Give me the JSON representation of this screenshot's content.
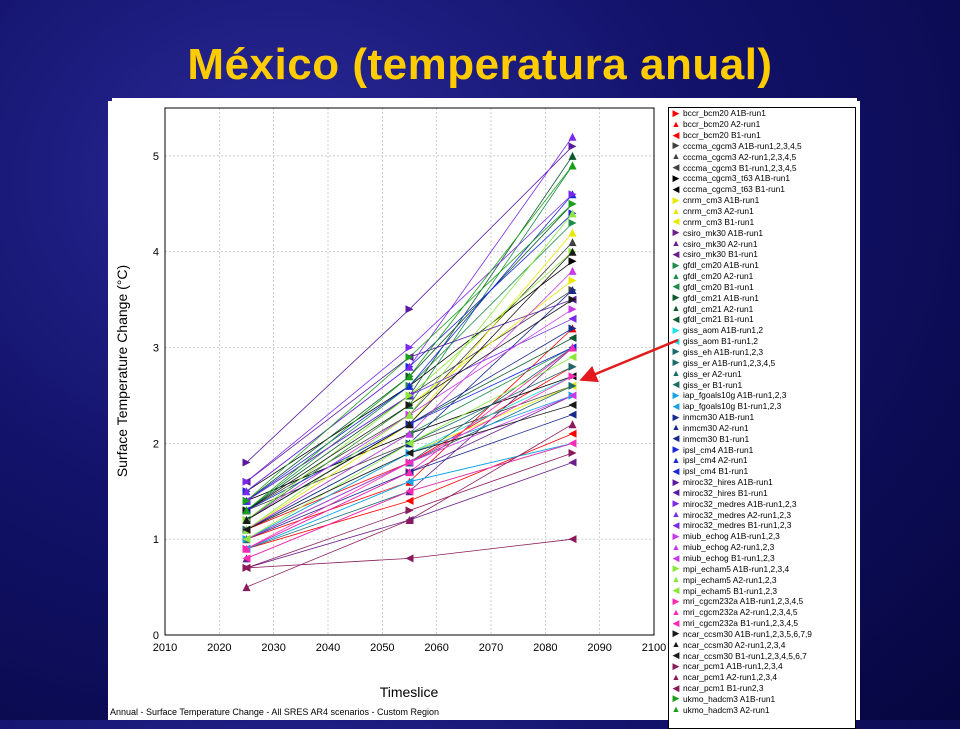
{
  "slide": {
    "title": "México (temperatura anual)"
  },
  "caption": "Annual - Surface Temperature Change - All SRES AR4 scenarios - Custom Region",
  "colors": {
    "arrow": "#e31a1c",
    "title": "#ffcc00"
  },
  "chart_data": {
    "type": "line",
    "xlabel": "Timeslice",
    "ylabel": "Surface Temperature Change (°C)",
    "xlim": [
      2010,
      2100
    ],
    "ylim": [
      0,
      5.5
    ],
    "xticks": [
      "2010",
      "2020",
      "2030",
      "2040",
      "2050",
      "2060",
      "2070",
      "2080",
      "2090",
      "2100"
    ],
    "yticks": [
      "0",
      "1",
      "2",
      "3",
      "4",
      "5"
    ],
    "grid": true,
    "legend_position": "right",
    "annotation": "arrow from legend entry giss_aom A1B-run1,2 to its marker at 2085",
    "x": [
      2025,
      2055,
      2085
    ],
    "series": [
      {
        "name": "bccr_bcm20 A1B-run1",
        "color": "#ff0000",
        "marker": "right",
        "values": [
          1.1,
          1.8,
          2.8
        ]
      },
      {
        "name": "bccr_bcm20 A2-run1",
        "color": "#ff0000",
        "marker": "up",
        "values": [
          1.0,
          1.6,
          3.2
        ]
      },
      {
        "name": "bccr_bcm20 B1-run1",
        "color": "#ff0000",
        "marker": "left",
        "values": [
          0.9,
          1.4,
          2.1
        ]
      },
      {
        "name": "cccma_cgcm3 A1B-run1,2,3,4,5",
        "color": "#404040",
        "marker": "right",
        "values": [
          1.4,
          2.5,
          3.6
        ]
      },
      {
        "name": "cccma_cgcm3 A2-run1,2,3,4,5",
        "color": "#404040",
        "marker": "up",
        "values": [
          1.3,
          2.3,
          4.1
        ]
      },
      {
        "name": "cccma_cgcm3 B1-run1,2,3,4,5",
        "color": "#404040",
        "marker": "left",
        "values": [
          1.3,
          2.0,
          2.6
        ]
      },
      {
        "name": "cccma_cgcm3_t63 A1B-run1",
        "color": "#000000",
        "marker": "right",
        "values": [
          1.5,
          2.6,
          3.9
        ]
      },
      {
        "name": "cccma_cgcm3_t63 B1-run1",
        "color": "#000000",
        "marker": "left",
        "values": [
          1.4,
          2.1,
          2.7
        ]
      },
      {
        "name": "cnrm_cm3 A1B-run1",
        "color": "#e8e800",
        "marker": "right",
        "values": [
          1.2,
          2.4,
          3.7
        ]
      },
      {
        "name": "cnrm_cm3 A2-run1",
        "color": "#e8e800",
        "marker": "up",
        "values": [
          1.1,
          2.2,
          4.2
        ]
      },
      {
        "name": "cnrm_cm3 B1-run1",
        "color": "#e8e800",
        "marker": "left",
        "values": [
          1.0,
          1.9,
          2.6
        ]
      },
      {
        "name": "csiro_mk30 A1B-run1",
        "color": "#6a1f8a",
        "marker": "right",
        "values": [
          0.9,
          1.7,
          2.5
        ]
      },
      {
        "name": "csiro_mk30 A2-run1",
        "color": "#6a1f8a",
        "marker": "up",
        "values": [
          0.8,
          1.5,
          3.0
        ]
      },
      {
        "name": "csiro_mk30 B1-run1",
        "color": "#6a1f8a",
        "marker": "left",
        "values": [
          0.7,
          1.2,
          1.8
        ]
      },
      {
        "name": "gfdl_cm20 A1B-run1",
        "color": "#1e8c4a",
        "marker": "right",
        "values": [
          1.3,
          2.6,
          4.3
        ]
      },
      {
        "name": "gfdl_cm20 A2-run1",
        "color": "#1e8c4a",
        "marker": "up",
        "values": [
          1.2,
          2.4,
          4.9
        ]
      },
      {
        "name": "gfdl_cm20 B1-run1",
        "color": "#1e8c4a",
        "marker": "left",
        "values": [
          1.1,
          2.1,
          3.0
        ]
      },
      {
        "name": "gfdl_cm21 A1B-run1",
        "color": "#0f5a2e",
        "marker": "right",
        "values": [
          1.4,
          2.7,
          4.5
        ]
      },
      {
        "name": "gfdl_cm21 A2-run1",
        "color": "#0f5a2e",
        "marker": "up",
        "values": [
          1.3,
          2.5,
          5.0
        ]
      },
      {
        "name": "gfdl_cm21 B1-run1",
        "color": "#0f5a2e",
        "marker": "left",
        "values": [
          1.2,
          2.2,
          3.1
        ]
      },
      {
        "name": "giss_aom A1B-run1,2",
        "color": "#20e0e0",
        "marker": "right",
        "values": [
          1.0,
          1.9,
          2.7
        ]
      },
      {
        "name": "giss_aom B1-run1,2",
        "color": "#20e0e0",
        "marker": "left",
        "values": [
          0.9,
          1.6,
          2.0
        ]
      },
      {
        "name": "giss_eh A1B-run1,2,3",
        "color": "#1a6a6a",
        "marker": "right",
        "values": [
          1.0,
          1.8,
          2.6
        ]
      },
      {
        "name": "giss_er A1B-run1,2,3,4,5",
        "color": "#1a6a6a",
        "marker": "right",
        "values": [
          1.1,
          2.0,
          2.8
        ]
      },
      {
        "name": "giss_er A2-run1",
        "color": "#1a6a6a",
        "marker": "up",
        "values": [
          1.0,
          1.8,
          3.0
        ]
      },
      {
        "name": "giss_er B1-run1",
        "color": "#1a6a6a",
        "marker": "left",
        "values": [
          0.9,
          1.5,
          2.0
        ]
      },
      {
        "name": "iap_fgoals10g A1B-run1,2,3",
        "color": "#1aa0e8",
        "marker": "right",
        "values": [
          1.0,
          1.9,
          2.5
        ]
      },
      {
        "name": "iap_fgoals10g B1-run1,2,3",
        "color": "#1aa0e8",
        "marker": "left",
        "values": [
          0.9,
          1.6,
          2.0
        ]
      },
      {
        "name": "inmcm30 A1B-run1",
        "color": "#1a2a8c",
        "marker": "right",
        "values": [
          1.2,
          2.2,
          3.2
        ]
      },
      {
        "name": "inmcm30 A2-run1",
        "color": "#1a2a8c",
        "marker": "up",
        "values": [
          1.1,
          2.0,
          3.6
        ]
      },
      {
        "name": "inmcm30 B1-run1",
        "color": "#1a2a8c",
        "marker": "left",
        "values": [
          1.0,
          1.7,
          2.3
        ]
      },
      {
        "name": "ipsl_cm4 A1B-run1",
        "color": "#1a2ad8",
        "marker": "right",
        "values": [
          1.5,
          2.8,
          4.4
        ]
      },
      {
        "name": "ipsl_cm4 A2-run1",
        "color": "#1a2ad8",
        "marker": "up",
        "values": [
          1.4,
          2.6,
          4.6
        ]
      },
      {
        "name": "ipsl_cm4 B1-run1",
        "color": "#1a2ad8",
        "marker": "left",
        "values": [
          1.3,
          2.2,
          3.0
        ]
      },
      {
        "name": "miroc32_hires A1B-run1",
        "color": "#5a1aa0",
        "marker": "right",
        "values": [
          1.8,
          3.4,
          5.1
        ]
      },
      {
        "name": "miroc32_hires B1-run1",
        "color": "#5a1aa0",
        "marker": "left",
        "values": [
          1.6,
          2.9,
          3.5
        ]
      },
      {
        "name": "miroc32_medres A1B-run1,2,3",
        "color": "#7a2ae8",
        "marker": "right",
        "values": [
          1.6,
          3.0,
          4.6
        ]
      },
      {
        "name": "miroc32_medres A2-run1,2,3",
        "color": "#7a2ae8",
        "marker": "up",
        "values": [
          1.5,
          2.8,
          5.2
        ]
      },
      {
        "name": "miroc32_medres B1-run1,2,3",
        "color": "#7a2ae8",
        "marker": "left",
        "values": [
          1.4,
          2.5,
          3.3
        ]
      },
      {
        "name": "miub_echog A1B-run1,2,3",
        "color": "#c83ae8",
        "marker": "right",
        "values": [
          1.2,
          2.3,
          3.4
        ]
      },
      {
        "name": "miub_echog A2-run1,2,3",
        "color": "#c83ae8",
        "marker": "up",
        "values": [
          1.1,
          2.1,
          3.8
        ]
      },
      {
        "name": "miub_echog B1-run1,2,3",
        "color": "#c83ae8",
        "marker": "left",
        "values": [
          1.0,
          1.8,
          2.5
        ]
      },
      {
        "name": "mpi_echam5 A1B-run1,2,3,4",
        "color": "#8ae83a",
        "marker": "right",
        "values": [
          1.2,
          2.5,
          4.0
        ]
      },
      {
        "name": "mpi_echam5 A2-run1,2,3",
        "color": "#8ae83a",
        "marker": "up",
        "values": [
          1.1,
          2.3,
          4.4
        ]
      },
      {
        "name": "mpi_echam5 B1-run1,2,3",
        "color": "#8ae83a",
        "marker": "left",
        "values": [
          1.0,
          2.0,
          2.9
        ]
      },
      {
        "name": "mri_cgcm232a A1B-run1,2,3,4,5",
        "color": "#ff2ab4",
        "marker": "right",
        "values": [
          0.9,
          1.8,
          2.7
        ]
      },
      {
        "name": "mri_cgcm232a A2-run1,2,3,4,5",
        "color": "#ff2ab4",
        "marker": "up",
        "values": [
          0.9,
          1.7,
          3.0
        ]
      },
      {
        "name": "mri_cgcm232a B1-run1,2,3,4,5",
        "color": "#ff2ab4",
        "marker": "left",
        "values": [
          0.8,
          1.5,
          2.0
        ]
      },
      {
        "name": "ncar_ccsm30 A1B-run1,2,3,5,6,7,9",
        "color": "#1a1a1a",
        "marker": "right",
        "values": [
          1.3,
          2.4,
          3.5
        ]
      },
      {
        "name": "ncar_ccsm30 A2-run1,2,3,4",
        "color": "#1a1a1a",
        "marker": "up",
        "values": [
          1.2,
          2.2,
          4.0
        ]
      },
      {
        "name": "ncar_ccsm30 B1-run1,2,3,4,5,6,7",
        "color": "#1a1a1a",
        "marker": "left",
        "values": [
          1.1,
          1.9,
          2.4
        ]
      },
      {
        "name": "ncar_pcm1 A1B-run1,2,3,4",
        "color": "#8a1a5a",
        "marker": "right",
        "values": [
          0.7,
          1.3,
          1.9
        ]
      },
      {
        "name": "ncar_pcm1 A2-run1,2,3,4",
        "color": "#8a1a5a",
        "marker": "up",
        "values": [
          0.5,
          1.2,
          2.2
        ]
      },
      {
        "name": "ncar_pcm1 B1-run2,3",
        "color": "#8a1a5a",
        "marker": "left",
        "values": [
          0.7,
          0.8,
          1.0
        ]
      },
      {
        "name": "ukmo_hadcm3 A1B-run1",
        "color": "#1aa01a",
        "marker": "right",
        "values": [
          1.4,
          2.9,
          4.5
        ]
      },
      {
        "name": "ukmo_hadcm3 A2-run1",
        "color": "#1aa01a",
        "marker": "up",
        "values": [
          1.3,
          2.7,
          4.9
        ]
      }
    ]
  }
}
